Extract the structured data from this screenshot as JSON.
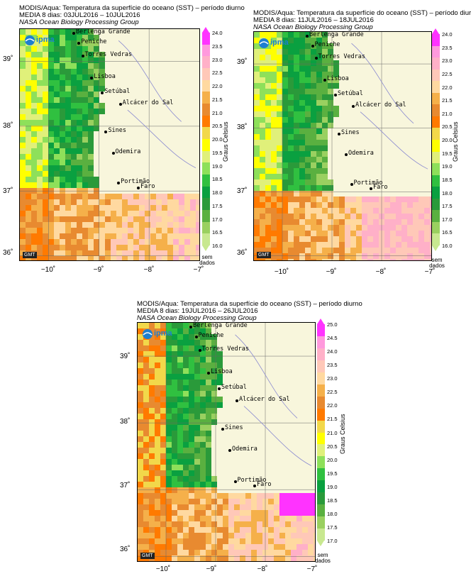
{
  "panels": [
    {
      "title_line1": "MODIS/Aqua: Temperatura da superfície do oceano (SST) – período diurno",
      "title_line2": "MEDIA 8 dias: 03JUL2016 – 10JUL2016",
      "title_line3": "NASA Ocean Biology Processing Group",
      "scale_ticks": [
        "24.0",
        "23.5",
        "23.0",
        "22.5",
        "22.0",
        "21.5",
        "21.0",
        "20.5",
        "20.0",
        "19.5",
        "19.0",
        "18.5",
        "18.0",
        "17.5",
        "17.0",
        "16.5",
        "16.0"
      ],
      "mean_level": 0.45
    },
    {
      "title_line1": "MODIS/Aqua: Temperatura da superfície do oceano (SST) – período diurno",
      "title_line2": "MEDIA 8 dias: 11JUL2016 – 18JUL2016",
      "title_line3": "NASA Ocean Biology Processing Group",
      "scale_ticks": [
        "24.0",
        "23.5",
        "23.0",
        "22.5",
        "22.0",
        "21.5",
        "21.0",
        "20.5",
        "20.0",
        "19.5",
        "19.0",
        "18.5",
        "18.0",
        "17.5",
        "17.0",
        "16.5",
        "16.0"
      ],
      "mean_level": 0.35
    },
    {
      "title_line1": "MODIS/Aqua: Temperatura da superfície do oceano (SST) – período diurno",
      "title_line2": "MEDIA 8 dias: 19JUL2016 – 26JUL2016",
      "title_line3": "NASA Ocean Biology Processing Group",
      "scale_ticks": [
        "25.0",
        "24.5",
        "24.0",
        "23.5",
        "23.0",
        "22.5",
        "22.0",
        "21.5",
        "21.0",
        "20.5",
        "20.0",
        "19.5",
        "19.0",
        "18.5",
        "18.0",
        "17.5",
        "17.0"
      ],
      "mean_level": 0.4
    }
  ],
  "scale_unit": "Graus Celsius",
  "no_data_label_1": "sem",
  "no_data_label_2": "dados",
  "lat_labels": [
    "39˚",
    "38˚",
    "37˚",
    "36˚"
  ],
  "lon_labels": [
    "−10˚",
    "−9˚",
    "−8˚",
    "−7˚"
  ],
  "logo_text": "ipma",
  "gmt_text": "GMT",
  "cities": [
    "Berlenga Grande",
    "Peniche",
    "Torres Vedras",
    "Lisboa",
    "Setúbal",
    "Alcácer do Sal",
    "Sines",
    "Odemira",
    "Portimão",
    "Faro"
  ],
  "colors": {
    "scale": [
      "#ff33ff",
      "#ff99dd",
      "#ffb0c8",
      "#ffc8b8",
      "#ffd9a0",
      "#f5b04a",
      "#e88a30",
      "#ff7a00",
      "#f2d84a",
      "#ffff00",
      "#e0f07a",
      "#8ee05a",
      "#30c040",
      "#0aa040",
      "#2a9a3a",
      "#5ab040",
      "#9ad060",
      "#c8e890"
    ],
    "land": "#f8f6dc"
  }
}
